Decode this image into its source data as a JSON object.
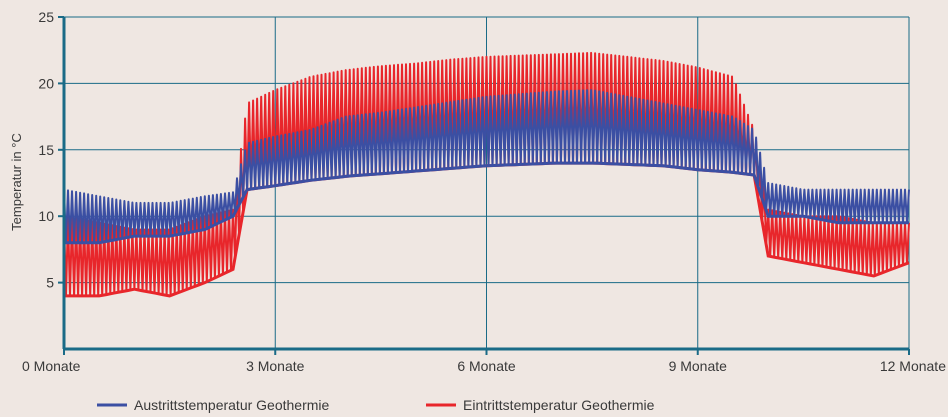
{
  "chart_data": {
    "type": "line",
    "title": "",
    "xlabel": "",
    "ylabel": "Temperatur in °C",
    "xlim": [
      0,
      12
    ],
    "ylim": [
      0,
      25
    ],
    "grid": true,
    "legend_position": "bottom",
    "x_ticks": [
      {
        "value": 0,
        "label": "0 Monate"
      },
      {
        "value": 3,
        "label": "3 Monate"
      },
      {
        "value": 6,
        "label": "6 Monate"
      },
      {
        "value": 9,
        "label": "9 Monate"
      },
      {
        "value": 12,
        "label": "12 Monate"
      }
    ],
    "y_ticks": [
      {
        "value": 5,
        "label": "5"
      },
      {
        "value": 10,
        "label": "10"
      },
      {
        "value": 15,
        "label": "15"
      },
      {
        "value": 20,
        "label": "20"
      },
      {
        "value": 25,
        "label": "25"
      }
    ],
    "series": [
      {
        "name": "Eintrittstemperatur Geothermie",
        "color": "#e8262b",
        "x": [
          0,
          0.5,
          1,
          1.5,
          2,
          2.4,
          2.6,
          3,
          3.5,
          4,
          4.5,
          5,
          5.5,
          6,
          6.5,
          7,
          7.5,
          8,
          8.5,
          9,
          9.5,
          9.8,
          10,
          10.5,
          11,
          11.5,
          12
        ],
        "low": [
          4,
          4,
          4.5,
          4,
          5,
          6,
          12,
          12.3,
          12.7,
          13,
          13.2,
          13.4,
          13.6,
          13.8,
          13.9,
          14,
          14,
          13.9,
          13.8,
          13.5,
          13.3,
          13.1,
          7,
          6.5,
          6,
          5.5,
          6.5
        ],
        "high": [
          10,
          9.5,
          9,
          9,
          10,
          10.5,
          18.5,
          19.5,
          20.5,
          21,
          21.3,
          21.5,
          21.8,
          22,
          22.1,
          22.2,
          22.3,
          22,
          21.7,
          21.2,
          20.5,
          16.5,
          10.5,
          10,
          10,
          9.5,
          9.5
        ]
      },
      {
        "name": "Austrittstemperatur Geothermie",
        "color": "#3b4fa3",
        "x": [
          0,
          0.5,
          1,
          1.5,
          2,
          2.4,
          2.6,
          3,
          3.5,
          4,
          4.5,
          5,
          5.5,
          6,
          6.5,
          7,
          7.5,
          8,
          8.5,
          9,
          9.5,
          9.8,
          10,
          10.5,
          11,
          11.5,
          12
        ],
        "low": [
          8,
          8,
          8.5,
          8.5,
          9,
          10,
          12,
          12.3,
          12.7,
          13,
          13.2,
          13.4,
          13.6,
          13.8,
          13.9,
          14,
          14,
          13.9,
          13.8,
          13.5,
          13.3,
          13.1,
          10,
          10,
          9.5,
          9.5,
          9.5
        ],
        "high": [
          12,
          11.5,
          11,
          11,
          11.5,
          11.8,
          15.5,
          16,
          16.5,
          17.5,
          17.8,
          18.2,
          18.6,
          19,
          19.2,
          19.4,
          19.5,
          19,
          18.5,
          18,
          17.5,
          16.5,
          12.5,
          12,
          12,
          12,
          12
        ]
      }
    ]
  }
}
